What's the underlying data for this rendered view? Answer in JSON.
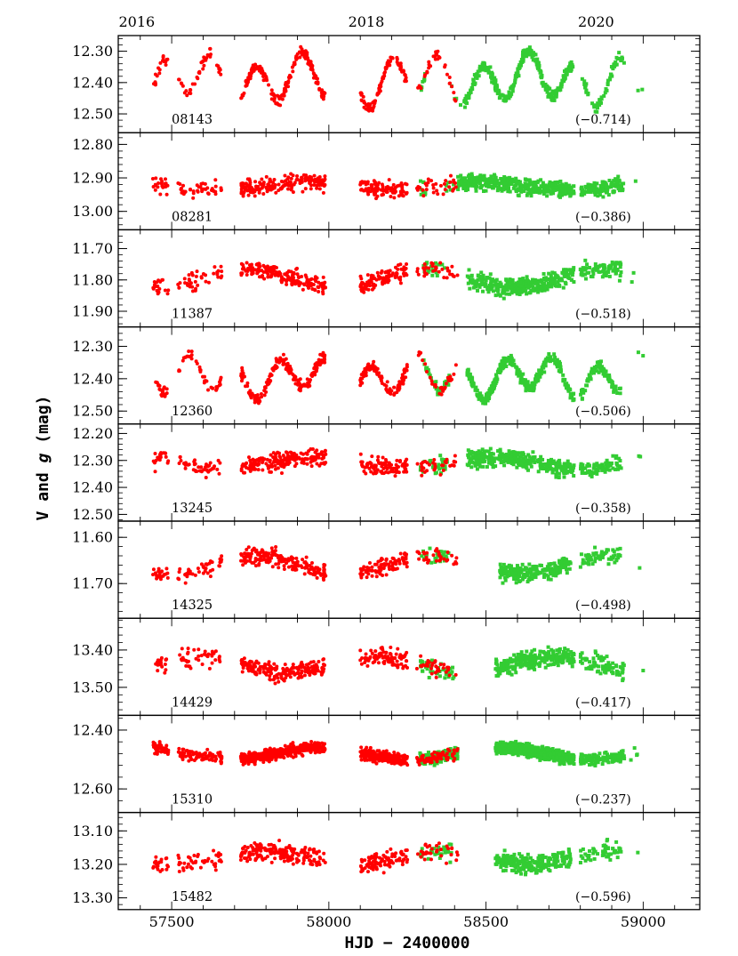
{
  "chart_data": {
    "type": "scatter",
    "xlabel": "HJD − 2400000",
    "ylabel_parts": [
      "V and ",
      "g",
      " (mag)"
    ],
    "xlim": [
      57330,
      59180
    ],
    "xticks": [
      57500,
      58000,
      58500,
      59000
    ],
    "top_axis": {
      "labels": [
        {
          "text": "2016",
          "hjd": 57389
        },
        {
          "text": "2018",
          "hjd": 58119
        },
        {
          "text": "2020",
          "hjd": 58850
        }
      ]
    },
    "colors": {
      "V": "#ff0000",
      "g": "#33cc33"
    },
    "panels": [
      {
        "star": "08143",
        "offset": "(−0.714)",
        "ylim": [
          12.56,
          12.25
        ],
        "yticks": [
          12.3,
          12.4,
          12.5
        ],
        "ytick_labels": [
          "12.30",
          "12.40",
          "12.50"
        ],
        "mean": 12.39,
        "amp": 0.065,
        "spread": 0.02,
        "pattern": "osc",
        "g_segments": [
          [
            58290,
            58310,
            0.4
          ],
          [
            58385,
            58420,
            0.15
          ],
          [
            58430,
            58780,
            0.9
          ],
          [
            58800,
            58940,
            0.45
          ],
          [
            58970,
            59000,
            0.05
          ]
        ]
      },
      {
        "star": "08281",
        "offset": "(−0.386)",
        "ylim": [
          13.055,
          12.765
        ],
        "yticks": [
          12.8,
          12.9,
          13.0
        ],
        "ytick_labels": [
          "12.80",
          "12.90",
          "13.00"
        ],
        "mean": 12.925,
        "amp": 0.012,
        "spread": 0.03,
        "pattern": "noise",
        "g_segments": [
          [
            58290,
            58310,
            0.4
          ],
          [
            58370,
            58400,
            0.15
          ],
          [
            58410,
            58780,
            1.1
          ],
          [
            58800,
            58940,
            0.8
          ],
          [
            58975,
            59000,
            0.05
          ]
        ]
      },
      {
        "star": "11387",
        "offset": "(−0.518)",
        "ylim": [
          11.95,
          11.64
        ],
        "yticks": [
          11.7,
          11.8,
          11.9
        ],
        "ytick_labels": [
          "11.70",
          "11.80",
          "11.90"
        ],
        "mean": 11.795,
        "amp": 0.03,
        "spread": 0.035,
        "pattern": "noise",
        "g_segments": [
          [
            58300,
            58370,
            0.3
          ],
          [
            58440,
            58780,
            0.9
          ],
          [
            58800,
            58930,
            0.6
          ],
          [
            58960,
            59000,
            0.05
          ]
        ]
      },
      {
        "star": "12360",
        "offset": "(−0.506)",
        "ylim": [
          12.54,
          12.24
        ],
        "yticks": [
          12.3,
          12.4,
          12.5
        ],
        "ytick_labels": [
          "12.30",
          "12.40",
          "12.50"
        ],
        "mean": 12.395,
        "amp": 0.05,
        "spread": 0.02,
        "pattern": "osc",
        "g_segments": [
          [
            58300,
            58390,
            0.4
          ],
          [
            58440,
            58780,
            1.0
          ],
          [
            58800,
            58930,
            0.7
          ],
          [
            58970,
            59000,
            0.05
          ]
        ]
      },
      {
        "star": "13245",
        "offset": "(−0.358)",
        "ylim": [
          12.525,
          12.165
        ],
        "yticks": [
          12.2,
          12.3,
          12.4,
          12.5
        ],
        "ytick_labels": [
          "12.20",
          "12.30",
          "12.40",
          "12.50"
        ],
        "mean": 12.31,
        "amp": 0.02,
        "spread": 0.04,
        "pattern": "noise",
        "g_segments": [
          [
            58290,
            58310,
            0.2
          ],
          [
            58320,
            58380,
            0.4
          ],
          [
            58440,
            58780,
            1.0
          ],
          [
            58800,
            58930,
            0.6
          ],
          [
            58970,
            59000,
            0.05
          ]
        ]
      },
      {
        "star": "14325",
        "offset": "(−0.498)",
        "ylim": [
          11.775,
          11.565
        ],
        "yticks": [
          11.6,
          11.7
        ],
        "ytick_labels": [
          "11.60",
          "11.70"
        ],
        "mean": 11.66,
        "amp": 0.02,
        "spread": 0.022,
        "pattern": "noise",
        "g_segments": [
          [
            58290,
            58390,
            0.25
          ],
          [
            58540,
            58770,
            0.9
          ],
          [
            58800,
            58930,
            0.45
          ],
          [
            58980,
            59000,
            0.05
          ]
        ]
      },
      {
        "star": "14429",
        "offset": "(−0.417)",
        "ylim": [
          13.575,
          13.315
        ],
        "yticks": [
          13.4,
          13.5
        ],
        "ytick_labels": [
          "13.40",
          "13.50"
        ],
        "mean": 13.44,
        "amp": 0.02,
        "spread": 0.03,
        "pattern": "noise",
        "g_segments": [
          [
            58290,
            58400,
            0.4
          ],
          [
            58530,
            58780,
            1.1
          ],
          [
            58800,
            58940,
            0.5
          ],
          [
            58975,
            59000,
            0.05
          ]
        ]
      },
      {
        "star": "15310",
        "offset": "(−0.237)",
        "ylim": [
          12.68,
          12.35
        ],
        "yticks": [
          12.4,
          12.6
        ],
        "ytick_labels": [
          "12.40",
          "12.60"
        ],
        "mean": 12.48,
        "amp": 0.02,
        "spread": 0.025,
        "pattern": "dense",
        "g_segments": [
          [
            58290,
            58410,
            1.4
          ],
          [
            58530,
            58780,
            2.4
          ],
          [
            58800,
            58940,
            0.9
          ],
          [
            58960,
            59000,
            0.1
          ]
        ]
      },
      {
        "star": "15482",
        "offset": "(−0.596)",
        "ylim": [
          13.335,
          13.045
        ],
        "yticks": [
          13.1,
          13.2,
          13.3
        ],
        "ytick_labels": [
          "13.10",
          "13.20",
          "13.30"
        ],
        "mean": 13.18,
        "amp": 0.02,
        "spread": 0.035,
        "pattern": "noise",
        "g_segments": [
          [
            58290,
            58390,
            0.3
          ],
          [
            58530,
            58770,
            0.9
          ],
          [
            58800,
            58930,
            0.4
          ],
          [
            58980,
            59000,
            0.05
          ]
        ]
      }
    ]
  }
}
